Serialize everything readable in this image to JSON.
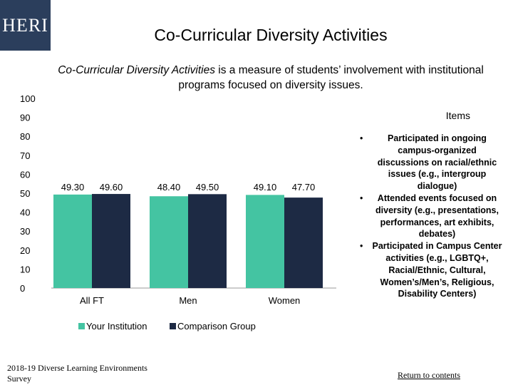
{
  "header": {
    "logo_text": "HERI",
    "title": "Co-Curricular Diversity Activities"
  },
  "description": {
    "italic_part": "Co-Curricular Diversity Activities",
    "rest": " is a measure of students’ involvement with institutional programs focused on diversity issues."
  },
  "chart_data": {
    "type": "bar",
    "categories": [
      "All FT",
      "Men",
      "Women"
    ],
    "series": [
      {
        "name": "Your Institution",
        "values": [
          49.3,
          48.4,
          49.1
        ],
        "labels": [
          "49.30",
          "48.40",
          "49.10"
        ],
        "color": "#44c4a2"
      },
      {
        "name": "Comparison Group",
        "values": [
          49.6,
          49.5,
          47.7
        ],
        "labels": [
          "49.60",
          "49.50",
          "47.70"
        ],
        "color": "#1d2a44"
      }
    ],
    "ylim": [
      0,
      100
    ],
    "yticks": [
      "0",
      "10",
      "20",
      "30",
      "40",
      "50",
      "60",
      "70",
      "80",
      "90",
      "100"
    ],
    "legend_position": "bottom",
    "grid": false
  },
  "items": {
    "heading": "Items",
    "list": [
      "Participated in ongoing campus-organized discussions on racial/ethnic issues (e.g., intergroup dialogue)",
      "Attended events focused on diversity (e.g., presentations, performances, art exhibits, debates)",
      "Participated in Campus Center activities (e.g., LGBTQ+, Racial/Ethnic, Cultural, Women’s/Men’s, Religious, Disability Centers)"
    ]
  },
  "footer": {
    "source": "2018-19 Diverse Learning Environments Survey",
    "return_link": "Return to contents"
  }
}
